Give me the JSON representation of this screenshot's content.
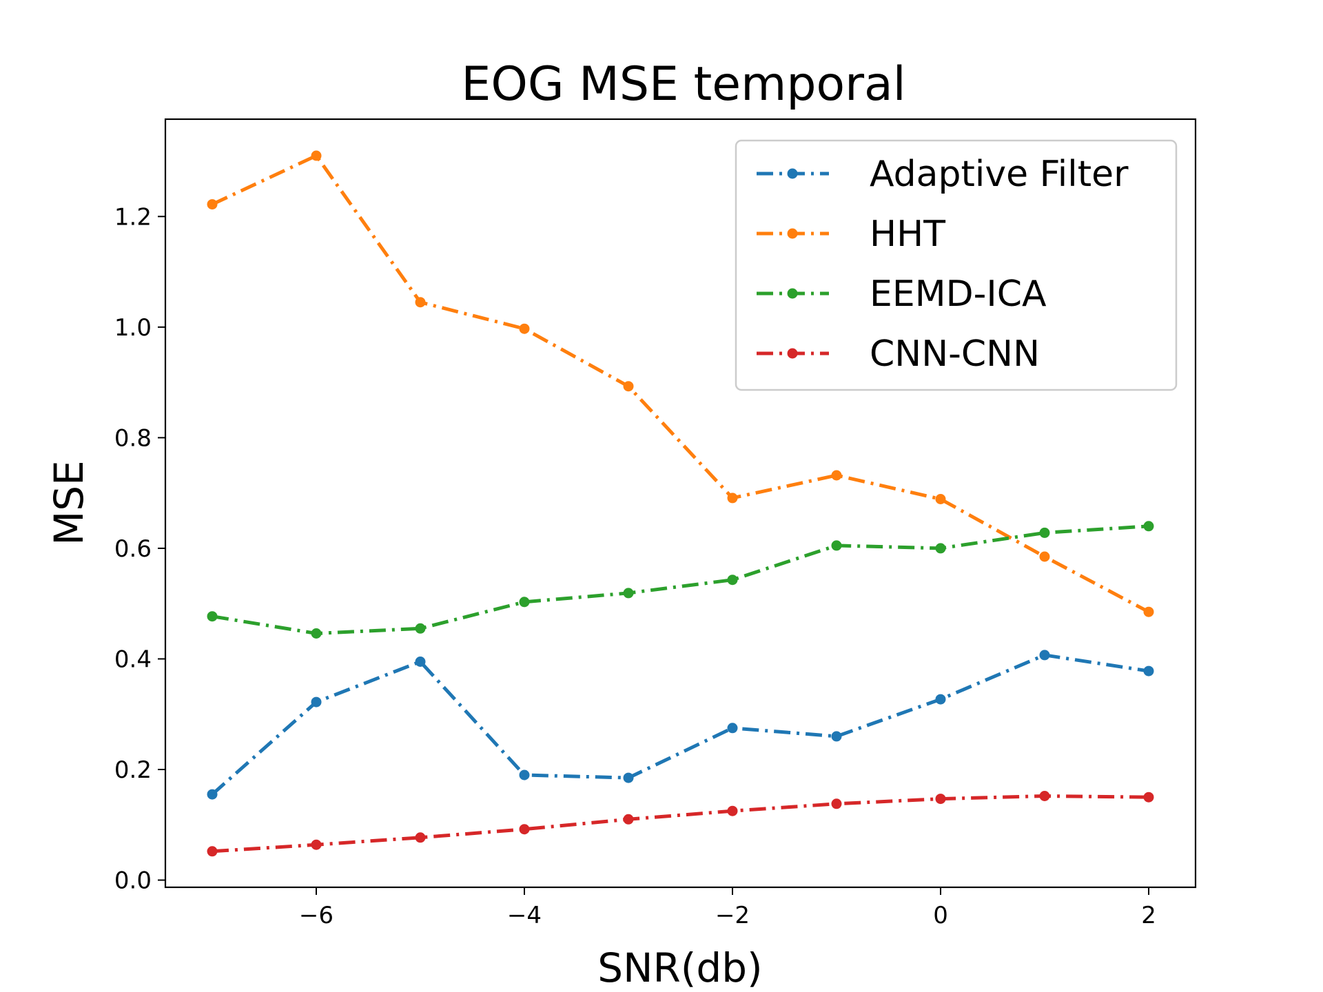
{
  "chart_data": {
    "type": "line",
    "title": "EOG MSE temporal",
    "xlabel": "SNR(db)",
    "ylabel": "MSE",
    "x": [
      -7,
      -6,
      -5,
      -4,
      -3,
      -2,
      -1,
      0,
      1,
      2
    ],
    "xlim": [
      -7.45,
      2.45
    ],
    "ylim": [
      -0.013,
      1.376
    ],
    "xticks": [
      -6,
      -4,
      -2,
      0,
      2
    ],
    "xtick_labels": [
      "−6",
      "−4",
      "−2",
      "0",
      "2"
    ],
    "yticks": [
      0.0,
      0.2,
      0.4,
      0.6,
      0.8,
      1.0,
      1.2
    ],
    "ytick_labels": [
      "0.0",
      "0.2",
      "0.4",
      "0.6",
      "0.8",
      "1.0",
      "1.2"
    ],
    "grid": false,
    "legend_position": "top-right",
    "line_style": "dash-dot",
    "marker": "dot",
    "series": [
      {
        "name": "Adaptive Filter",
        "color": "#1f77b4",
        "values": [
          0.155,
          0.322,
          0.395,
          0.19,
          0.185,
          0.275,
          0.26,
          0.327,
          0.407,
          0.378
        ]
      },
      {
        "name": "HHT",
        "color": "#ff7f0e",
        "values": [
          1.222,
          1.31,
          1.045,
          0.997,
          0.893,
          0.691,
          0.732,
          0.689,
          0.585,
          0.485
        ]
      },
      {
        "name": "EEMD-ICA",
        "color": "#2ca02c",
        "values": [
          0.477,
          0.446,
          0.455,
          0.503,
          0.519,
          0.543,
          0.605,
          0.6,
          0.628,
          0.64
        ]
      },
      {
        "name": "CNN-CNN",
        "color": "#d62728",
        "values": [
          0.052,
          0.064,
          0.077,
          0.092,
          0.11,
          0.125,
          0.138,
          0.147,
          0.152,
          0.15
        ]
      }
    ]
  }
}
